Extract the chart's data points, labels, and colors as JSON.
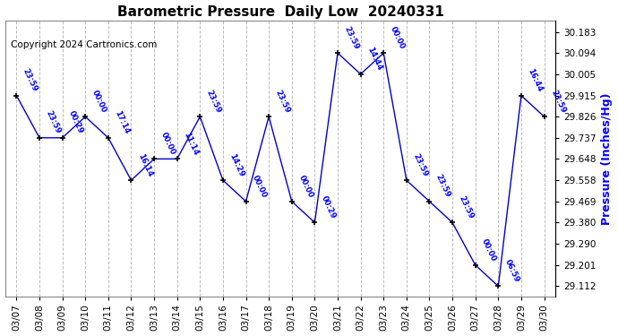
{
  "title": "Barometric Pressure  Daily Low  20240331",
  "ylabel": "Pressure (Inches/Hg)",
  "copyright": "Copyright 2024 Cartronics.com",
  "line_color": "#0000cc",
  "marker_color": "#000000",
  "label_color": "#0000ff",
  "ylabel_color": "#0000ff",
  "text_color": "#000000",
  "bg_color": "#ffffff",
  "plot_bg_color": "#ffffff",
  "grid_color": "#bbbbbb",
  "dates": [
    "03/07",
    "03/08",
    "03/09",
    "03/10",
    "03/11",
    "03/12",
    "03/13",
    "03/14",
    "03/15",
    "03/16",
    "03/17",
    "03/18",
    "03/19",
    "03/20",
    "03/21",
    "03/22",
    "03/23",
    "03/24",
    "03/25",
    "03/26",
    "03/27",
    "03/28",
    "03/29",
    "03/30"
  ],
  "values": [
    29.915,
    29.737,
    29.737,
    29.826,
    29.737,
    29.558,
    29.648,
    29.648,
    29.826,
    29.558,
    29.469,
    29.826,
    29.469,
    29.38,
    30.094,
    30.005,
    30.094,
    29.558,
    29.469,
    29.38,
    29.201,
    29.112,
    29.915,
    29.826
  ],
  "time_labels": [
    "23:59",
    "23:59",
    "00:29",
    "00:00",
    "17:14",
    "16:14",
    "00:00",
    "11:14",
    "23:59",
    "14:29",
    "00:00",
    "23:59",
    "00:00",
    "00:29",
    "23:59",
    "14:44",
    "00:00",
    "23:59",
    "23:59",
    "23:59",
    "00:00",
    "06:59",
    "16:44",
    "23:59"
  ],
  "yticks": [
    29.112,
    29.201,
    29.29,
    29.38,
    29.469,
    29.558,
    29.648,
    29.737,
    29.826,
    29.915,
    30.005,
    30.094,
    30.183
  ],
  "ylim": [
    29.07,
    30.23
  ],
  "title_fontsize": 11,
  "tick_fontsize": 7.5,
  "label_fontsize": 6.2,
  "copyright_fontsize": 7.5
}
